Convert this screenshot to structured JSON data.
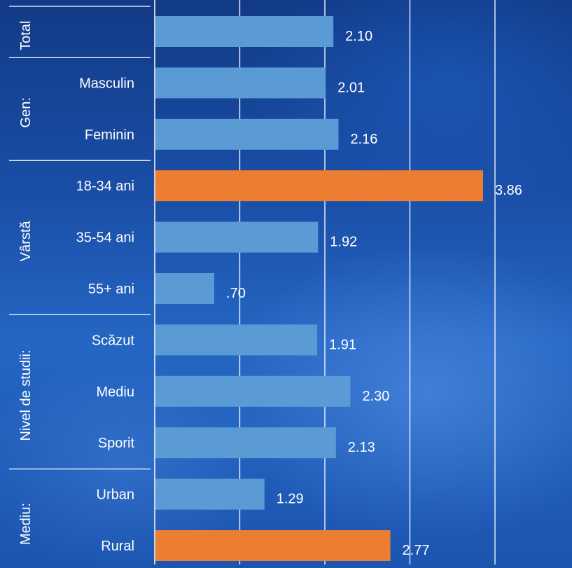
{
  "chart_data": {
    "type": "bar",
    "orientation": "horizontal",
    "xlim": [
      0,
      4.0
    ],
    "gridlines": [
      0,
      1,
      2,
      3,
      4
    ],
    "grid": true,
    "groups": [
      {
        "label": "Total",
        "categories": [
          ""
        ]
      },
      {
        "label": "Gen:",
        "categories": [
          "Masculin",
          "Feminin"
        ]
      },
      {
        "label": "Vârstă",
        "categories": [
          "18-34 ani",
          "35-54 ani",
          "55+ ani"
        ]
      },
      {
        "label": "Nivel de studii:",
        "categories": [
          "Scăzut",
          "Mediu",
          "Sporit"
        ]
      },
      {
        "label": "Mediu:",
        "categories": [
          "Urban",
          "Rural"
        ]
      }
    ],
    "values": [
      2.1,
      2.01,
      2.16,
      3.86,
      1.92,
      0.7,
      1.91,
      2.3,
      2.13,
      1.29,
      2.77
    ],
    "value_labels": [
      "2.10",
      "2.01",
      "2.16",
      "3.86",
      "1.92",
      ".70",
      "1.91",
      "2.30",
      "2.13",
      "1.29",
      "2.77"
    ],
    "highlighted": [
      false,
      false,
      false,
      true,
      false,
      false,
      false,
      false,
      false,
      false,
      true
    ],
    "colors": {
      "bar": "#5b9bd5",
      "highlight": "#ed7d31",
      "line": "#ffffff",
      "text": "#ffffff"
    }
  }
}
